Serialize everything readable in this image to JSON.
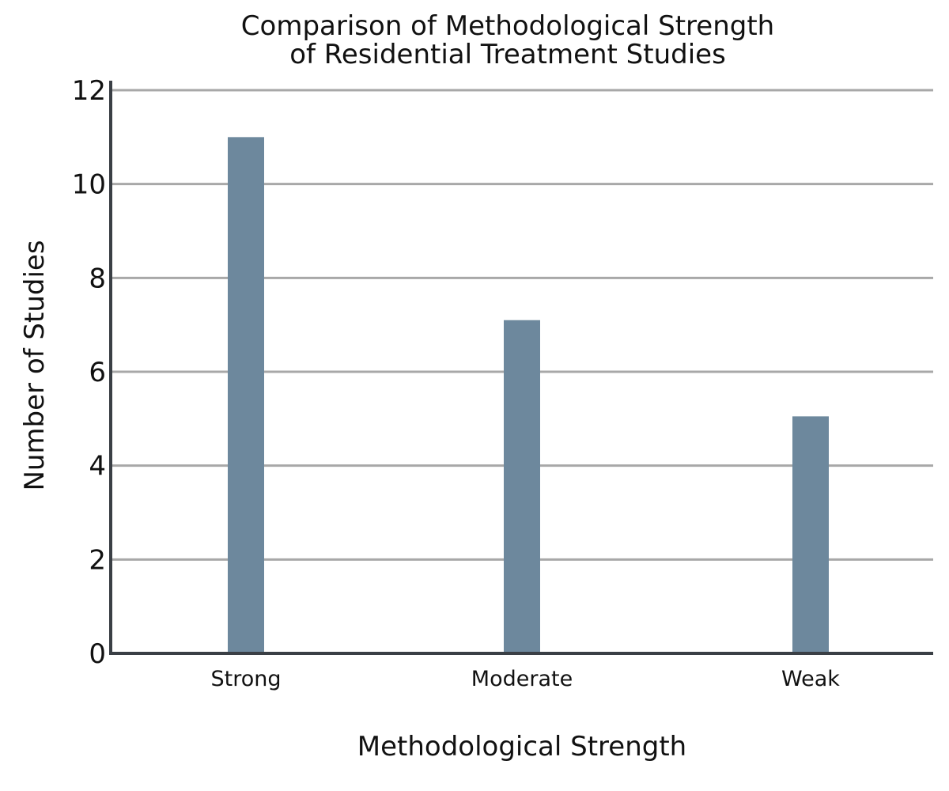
{
  "chart_data": {
    "type": "bar",
    "title_lines": [
      "Comparison of Methodological Strength",
      "of Residential Treatment Studies"
    ],
    "xlabel": "Methodological Strength",
    "ylabel": "Number of Studies",
    "categories": [
      "Strong",
      "Moderate",
      "Weak"
    ],
    "values": [
      11,
      7.1,
      5.05
    ],
    "ylim": [
      0,
      12
    ],
    "yticks": [
      0,
      2,
      4,
      6,
      8,
      10,
      12
    ],
    "grid": true,
    "legend": "none",
    "colors": {
      "bar": "#6d889d",
      "grid": "#a8a8a8",
      "axis": "#3a3f45",
      "text": "#111111"
    }
  }
}
